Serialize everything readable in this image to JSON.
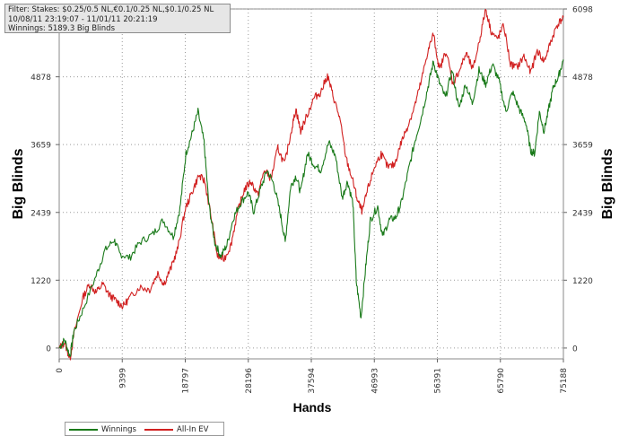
{
  "info": {
    "filter": "Filter: Stakes: $0.25/0.5 NL,€0.1/0.25 NL,$0.1/0.25 NL",
    "dates": "10/08/11 23:19:07 - 11/01/11 20:21:19",
    "winnings": "Winnings: 5189.3 Big Blinds"
  },
  "chart_data": {
    "type": "line",
    "xlabel": "Hands",
    "ylabel": "Big Blinds",
    "xlim": [
      0,
      75188
    ],
    "ylim": [
      -195,
      6098
    ],
    "x_ticks": [
      "0",
      "9399",
      "18797",
      "28196",
      "37594",
      "46993",
      "56391",
      "65790",
      "75188"
    ],
    "y_ticks": [
      "0",
      "1220",
      "2439",
      "3659",
      "4878",
      "6098"
    ],
    "grid": true,
    "legend_position": "bottom-left",
    "series": [
      {
        "name": "Winnings",
        "color": "#1a7a1a",
        "points": [
          [
            0,
            0
          ],
          [
            800,
            150
          ],
          [
            1600,
            -150
          ],
          [
            2200,
            300
          ],
          [
            3500,
            680
          ],
          [
            5500,
            1300
          ],
          [
            6800,
            1750
          ],
          [
            8200,
            1950
          ],
          [
            9000,
            1700
          ],
          [
            10500,
            1620
          ],
          [
            12000,
            1900
          ],
          [
            14000,
            2050
          ],
          [
            15500,
            2300
          ],
          [
            17000,
            2000
          ],
          [
            18000,
            2500
          ],
          [
            18900,
            3500
          ],
          [
            19800,
            3850
          ],
          [
            20700,
            4250
          ],
          [
            21600,
            3700
          ],
          [
            22300,
            2600
          ],
          [
            23200,
            1900
          ],
          [
            24100,
            1650
          ],
          [
            25000,
            1850
          ],
          [
            26000,
            2350
          ],
          [
            27000,
            2600
          ],
          [
            28200,
            2800
          ],
          [
            29000,
            2450
          ],
          [
            30000,
            2850
          ],
          [
            31000,
            3200
          ],
          [
            32000,
            2950
          ],
          [
            33000,
            2400
          ],
          [
            33700,
            1900
          ],
          [
            34500,
            2900
          ],
          [
            35300,
            3100
          ],
          [
            36000,
            2800
          ],
          [
            37000,
            3500
          ],
          [
            38000,
            3300
          ],
          [
            39000,
            3200
          ],
          [
            40200,
            3700
          ],
          [
            41200,
            3450
          ],
          [
            42200,
            2700
          ],
          [
            43000,
            3000
          ],
          [
            43800,
            2600
          ],
          [
            44300,
            1200
          ],
          [
            45000,
            550
          ],
          [
            45700,
            1450
          ],
          [
            46400,
            2300
          ],
          [
            47500,
            2550
          ],
          [
            48200,
            2000
          ],
          [
            49200,
            2300
          ],
          [
            50200,
            2350
          ],
          [
            51000,
            2600
          ],
          [
            52000,
            3150
          ],
          [
            53000,
            3700
          ],
          [
            54000,
            4150
          ],
          [
            55000,
            4700
          ],
          [
            55800,
            5150
          ],
          [
            56600,
            4800
          ],
          [
            57600,
            4500
          ],
          [
            58600,
            5000
          ],
          [
            59600,
            4300
          ],
          [
            60600,
            4750
          ],
          [
            61600,
            4400
          ],
          [
            62600,
            5000
          ],
          [
            63600,
            4750
          ],
          [
            64600,
            5100
          ],
          [
            65600,
            4800
          ],
          [
            66600,
            4250
          ],
          [
            67600,
            4600
          ],
          [
            68600,
            4300
          ],
          [
            69600,
            4050
          ],
          [
            70300,
            3550
          ],
          [
            70900,
            3500
          ],
          [
            71600,
            4250
          ],
          [
            72300,
            3900
          ],
          [
            73000,
            4300
          ],
          [
            73700,
            4700
          ],
          [
            74500,
            4900
          ],
          [
            75188,
            5189
          ]
        ]
      },
      {
        "name": "All-In EV",
        "color": "#d12020",
        "points": [
          [
            0,
            0
          ],
          [
            800,
            100
          ],
          [
            1600,
            -200
          ],
          [
            2200,
            250
          ],
          [
            3500,
            900
          ],
          [
            4500,
            1150
          ],
          [
            5500,
            1000
          ],
          [
            6500,
            1150
          ],
          [
            7500,
            950
          ],
          [
            8500,
            850
          ],
          [
            9500,
            750
          ],
          [
            10500,
            900
          ],
          [
            12000,
            1100
          ],
          [
            13500,
            1050
          ],
          [
            14700,
            1350
          ],
          [
            15600,
            1150
          ],
          [
            16700,
            1450
          ],
          [
            17700,
            1800
          ],
          [
            18800,
            2500
          ],
          [
            19800,
            2800
          ],
          [
            20800,
            3100
          ],
          [
            21700,
            3000
          ],
          [
            22600,
            2400
          ],
          [
            23600,
            1650
          ],
          [
            24600,
            1600
          ],
          [
            25600,
            1850
          ],
          [
            26600,
            2450
          ],
          [
            27600,
            2850
          ],
          [
            28600,
            3000
          ],
          [
            29600,
            2750
          ],
          [
            30600,
            3200
          ],
          [
            31600,
            3050
          ],
          [
            32600,
            3600
          ],
          [
            33600,
            3300
          ],
          [
            34600,
            3900
          ],
          [
            35300,
            4300
          ],
          [
            36000,
            3900
          ],
          [
            37000,
            4200
          ],
          [
            38000,
            4500
          ],
          [
            39000,
            4600
          ],
          [
            40000,
            4900
          ],
          [
            40800,
            4550
          ],
          [
            41800,
            4150
          ],
          [
            42800,
            3400
          ],
          [
            43800,
            3000
          ],
          [
            44500,
            2650
          ],
          [
            45200,
            2450
          ],
          [
            46000,
            2850
          ],
          [
            47000,
            3250
          ],
          [
            48000,
            3500
          ],
          [
            49000,
            3250
          ],
          [
            50000,
            3300
          ],
          [
            51000,
            3700
          ],
          [
            52000,
            4000
          ],
          [
            53000,
            4350
          ],
          [
            54000,
            4800
          ],
          [
            54900,
            5300
          ],
          [
            55800,
            5650
          ],
          [
            56700,
            5000
          ],
          [
            57700,
            5350
          ],
          [
            58700,
            4750
          ],
          [
            59700,
            5000
          ],
          [
            60700,
            5300
          ],
          [
            61700,
            5000
          ],
          [
            62700,
            5550
          ],
          [
            63600,
            6098
          ],
          [
            64400,
            5700
          ],
          [
            65300,
            5550
          ],
          [
            66300,
            5800
          ],
          [
            67300,
            5100
          ],
          [
            68300,
            5050
          ],
          [
            69300,
            5250
          ],
          [
            70300,
            4950
          ],
          [
            71300,
            5350
          ],
          [
            72300,
            5150
          ],
          [
            73300,
            5500
          ],
          [
            74200,
            5800
          ],
          [
            75188,
            5950
          ]
        ]
      }
    ]
  }
}
